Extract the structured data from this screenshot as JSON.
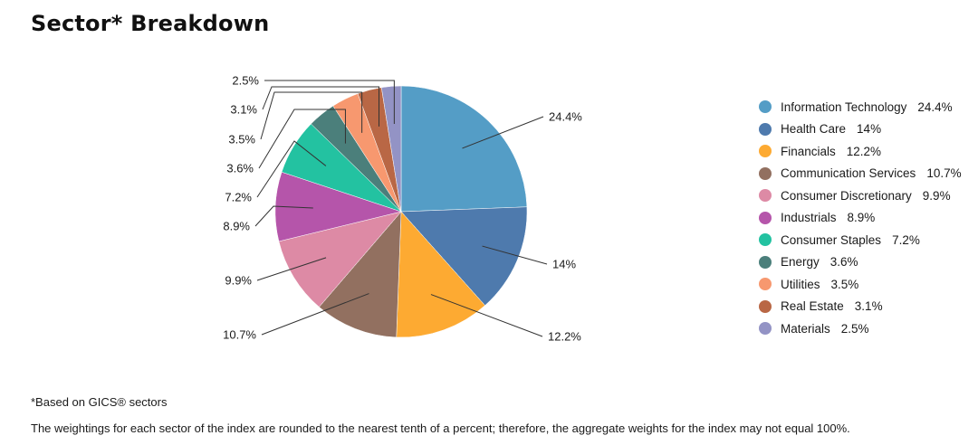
{
  "title": "Sector* Breakdown",
  "chart_data": {
    "type": "pie",
    "title": "",
    "legend_position": "right",
    "slices": [
      {
        "name": "Information Technology",
        "value": 24.4,
        "label": "24.4%",
        "legend_value": "24.4%",
        "color": "#549DC6"
      },
      {
        "name": "Health Care",
        "value": 14,
        "label": "14%",
        "legend_value": "14%",
        "color": "#4E7AAD"
      },
      {
        "name": "Financials",
        "value": 12.2,
        "label": "12.2%",
        "legend_value": "12.2%",
        "color": "#FDAA32"
      },
      {
        "name": "Communication Services",
        "value": 10.7,
        "label": "10.7%",
        "legend_value": "10.7%",
        "color": "#927060"
      },
      {
        "name": "Consumer Discretionary",
        "value": 9.9,
        "label": "9.9%",
        "legend_value": "9.9%",
        "color": "#DD8AA5"
      },
      {
        "name": "Industrials",
        "value": 8.9,
        "label": "8.9%",
        "legend_value": "8.9%",
        "color": "#B555AA"
      },
      {
        "name": "Consumer Staples",
        "value": 7.2,
        "label": "7.2%",
        "legend_value": "7.2%",
        "color": "#23C2A1"
      },
      {
        "name": "Energy",
        "value": 3.6,
        "label": "3.6%",
        "legend_value": "3.6%",
        "color": "#4B7F7B"
      },
      {
        "name": "Utilities",
        "value": 3.5,
        "label": "3.5%",
        "legend_value": "3.5%",
        "color": "#F7986F"
      },
      {
        "name": "Real Estate",
        "value": 3.1,
        "label": "3.1%",
        "legend_value": "3.1%",
        "color": "#B96745"
      },
      {
        "name": "Materials",
        "value": 2.5,
        "label": "2.5%",
        "legend_value": "2.5%",
        "color": "#9393C5"
      }
    ]
  },
  "footnote": "*Based on GICS® sectors",
  "note": "The weightings for each sector of the index are rounded to the nearest tenth of a percent; therefore, the aggregate weights for the index may not equal 100%."
}
